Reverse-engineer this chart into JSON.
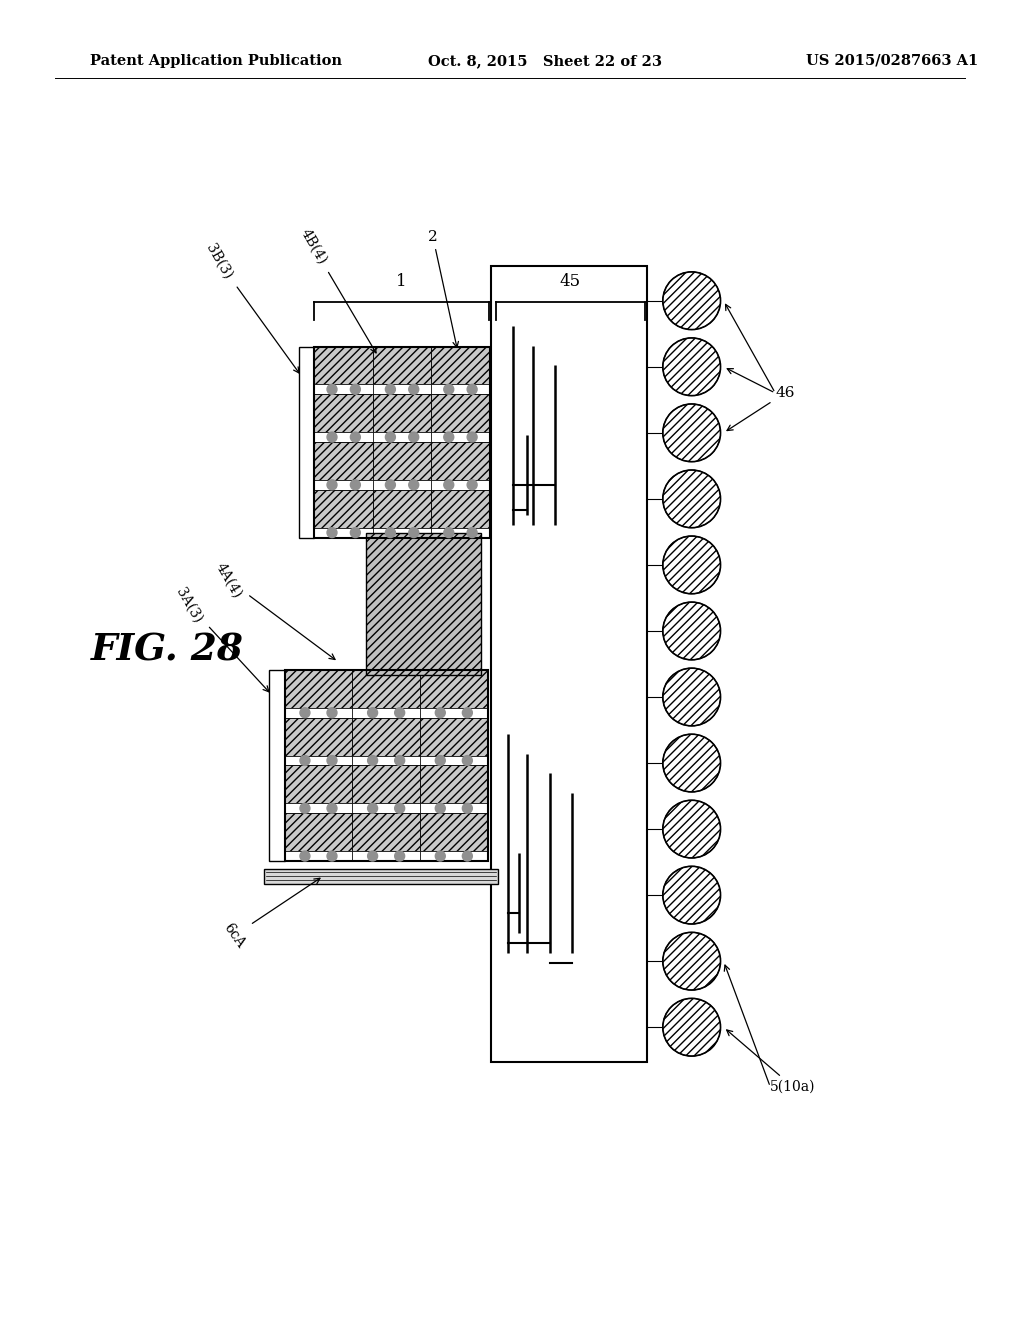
{
  "header_left": "Patent Application Publication",
  "header_center": "Oct. 8, 2015   Sheet 22 of 23",
  "header_right": "US 2015/0287663 A1",
  "fig_label": "FIG. 28",
  "bg_color": "#ffffff",
  "label_1": "1",
  "label_45": "45",
  "label_46": "46",
  "label_2": "2",
  "label_3B3": "3B(3)",
  "label_4B4": "4B(4)",
  "label_4A4": "4A(4)",
  "label_3A3": "3A(3)",
  "label_5_10a": "5(10a)",
  "label_6cA": "6cA"
}
